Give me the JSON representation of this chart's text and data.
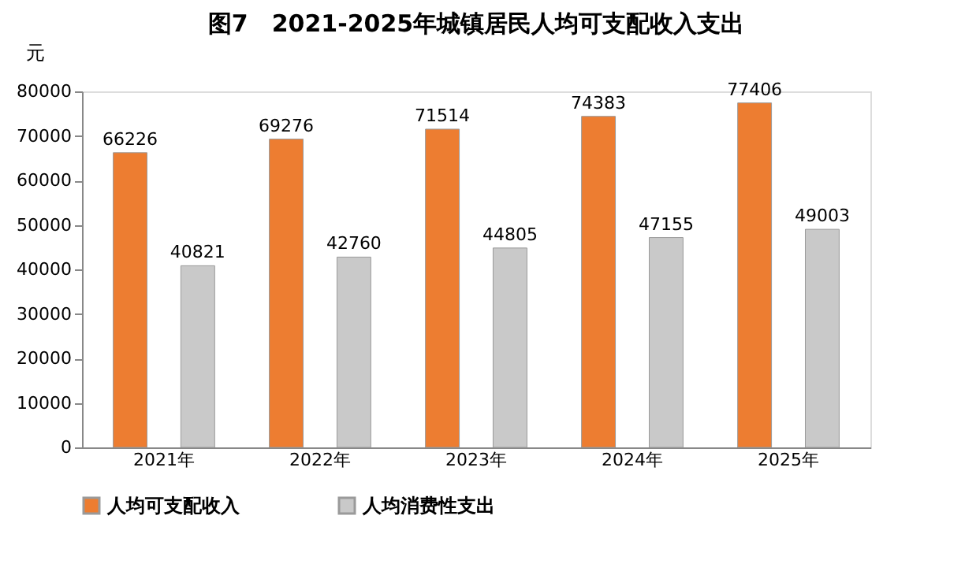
{
  "chart_data": {
    "type": "bar",
    "title": "图7　2021-2025年城镇居民人均可支配收入支出",
    "ylabel": "元",
    "categories": [
      "2021年",
      "2022年",
      "2023年",
      "2024年",
      "2025年"
    ],
    "series": [
      {
        "name": "人均可支配收入",
        "color": "#ed7d31",
        "values": [
          66226,
          69276,
          71514,
          74383,
          77406
        ]
      },
      {
        "name": "人均消费性支出",
        "color": "#c9c9c9",
        "values": [
          40821,
          42760,
          44805,
          47155,
          49003
        ]
      }
    ],
    "ylim": [
      0,
      80000
    ],
    "yticks": [
      0,
      10000,
      20000,
      30000,
      40000,
      50000,
      60000,
      70000,
      80000
    ],
    "data_labels": true,
    "grid": false,
    "legend": "bottom"
  }
}
